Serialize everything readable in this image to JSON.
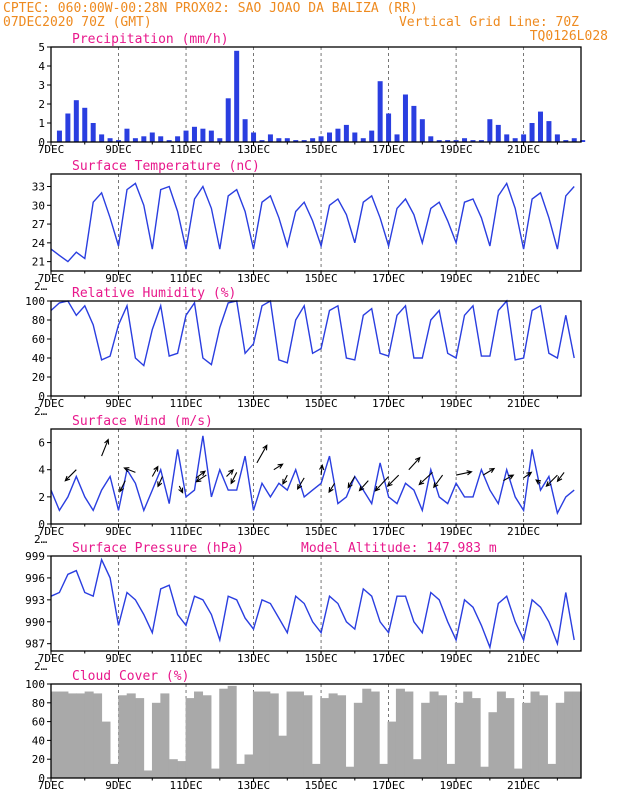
{
  "header": {
    "line1_left": "CPTEC:  060:00W-00:28N  PROX02: SAO JOAO DA BALIZA (RR)",
    "line2_left": "07DEC2020 70Z (GMT)",
    "line2_right": "Vertical Grid Line: 70Z",
    "line3_right": "TQ0126L028"
  },
  "x_ticks": [
    "7DEC",
    "9DEC",
    "11DEC",
    "13DEC",
    "15DEC",
    "17DEC",
    "19DEC",
    "21DEC"
  ],
  "colors": {
    "header": "#ee8a1f",
    "title": "#e8188c",
    "series": "#2a3ee0",
    "cloud": "#a9a9a9",
    "arrow": "#000000"
  },
  "chart_data": [
    {
      "id": "precip",
      "type": "bar",
      "title": "Precipitation (mm/h)",
      "ylim": [
        0,
        5
      ],
      "yticks": [
        0,
        1,
        2,
        3,
        4,
        5
      ],
      "x_unit": "days since 7DEC 00Z, 6-hourly",
      "x": [
        0.25,
        0.5,
        0.75,
        1.0,
        1.25,
        1.5,
        1.75,
        2.0,
        2.25,
        2.5,
        2.75,
        3.0,
        3.25,
        3.5,
        3.75,
        4.0,
        4.25,
        4.5,
        4.75,
        5.0,
        5.25,
        5.5,
        5.75,
        6.0,
        6.25,
        6.5,
        6.75,
        7.0,
        7.25,
        7.5,
        7.75,
        8.0,
        8.25,
        8.5,
        8.75,
        9.0,
        9.25,
        9.5,
        9.75,
        10.0,
        10.25,
        10.5,
        10.75,
        11.0,
        11.25,
        11.5,
        11.75,
        12.0,
        12.25,
        12.5,
        12.75,
        13.0,
        13.25,
        13.5,
        13.75,
        14.0,
        14.25,
        14.5,
        14.75,
        15.0,
        15.25,
        15.5,
        15.75
      ],
      "values": [
        0.6,
        1.5,
        2.2,
        1.8,
        1.0,
        0.4,
        0.2,
        0.1,
        0.7,
        0.2,
        0.3,
        0.5,
        0.3,
        0.1,
        0.3,
        0.6,
        0.8,
        0.7,
        0.6,
        0.2,
        2.3,
        4.8,
        1.2,
        0.5,
        0.1,
        0.4,
        0.2,
        0.2,
        0.1,
        0.1,
        0.2,
        0.3,
        0.5,
        0.7,
        0.9,
        0.5,
        0.2,
        0.6,
        3.2,
        1.5,
        0.4,
        2.5,
        1.9,
        1.2,
        0.3,
        0.1,
        0.1,
        0.1,
        0.2,
        0.1,
        0.1,
        1.2,
        0.9,
        0.4,
        0.2,
        0.4,
        1.0,
        1.6,
        1.1,
        0.4,
        0.1,
        0.2,
        0.1
      ]
    },
    {
      "id": "temp",
      "type": "line",
      "title": "Surface Temperature (nC)",
      "ylim": [
        19.5,
        35
      ],
      "yticks": [
        21,
        24,
        27,
        30,
        33
      ],
      "x_unit": "days since 7DEC 00Z, 6-hourly",
      "values": [
        23.0,
        22.0,
        21.0,
        22.5,
        21.5,
        30.5,
        32.0,
        28.0,
        23.5,
        32.5,
        33.5,
        30.0,
        23.0,
        32.5,
        33.0,
        29.0,
        23.0,
        31.0,
        33.0,
        29.5,
        23.0,
        31.5,
        32.5,
        29.0,
        23.0,
        30.5,
        31.5,
        28.0,
        23.5,
        29.0,
        30.5,
        27.5,
        23.5,
        30.0,
        31.0,
        28.5,
        24.0,
        30.5,
        31.5,
        28.0,
        23.5,
        29.5,
        31.0,
        28.5,
        24.0,
        29.5,
        30.5,
        27.5,
        24.0,
        30.5,
        31.0,
        28.0,
        23.5,
        31.5,
        33.5,
        29.5,
        23.0,
        31.0,
        32.0,
        28.0,
        23.0,
        31.5,
        33.0
      ],
      "annotation": "2…"
    },
    {
      "id": "rh",
      "type": "line",
      "title": "Relative Humidity (%)",
      "ylim": [
        0,
        100
      ],
      "yticks": [
        0,
        20,
        40,
        60,
        80,
        100
      ],
      "x_unit": "days since 7DEC 00Z, 6-hourly",
      "values": [
        90,
        98,
        100,
        85,
        95,
        75,
        38,
        42,
        75,
        95,
        40,
        32,
        70,
        95,
        42,
        45,
        85,
        98,
        40,
        33,
        72,
        98,
        100,
        45,
        55,
        95,
        100,
        38,
        35,
        80,
        95,
        45,
        50,
        90,
        95,
        40,
        38,
        85,
        92,
        45,
        42,
        85,
        95,
        40,
        40,
        80,
        90,
        45,
        40,
        85,
        95,
        42,
        42,
        90,
        100,
        38,
        40,
        90,
        95,
        45,
        40,
        85,
        40
      ],
      "annotation": "2…"
    },
    {
      "id": "wind",
      "type": "line",
      "title": "Surface Wind (m/s)",
      "ylim": [
        0,
        7
      ],
      "yticks": [
        0,
        2,
        4,
        6
      ],
      "x_unit": "days since 7DEC 00Z, 6-hourly",
      "values": [
        2.5,
        1.0,
        2.0,
        3.5,
        2.0,
        1.0,
        2.5,
        3.5,
        1.0,
        4.0,
        3.0,
        1.0,
        2.5,
        4.0,
        1.5,
        5.5,
        2.0,
        2.5,
        6.5,
        2.0,
        4.0,
        2.5,
        2.5,
        5.0,
        1.0,
        3.0,
        2.0,
        3.0,
        2.5,
        4.0,
        2.0,
        2.5,
        3.0,
        5.0,
        1.5,
        2.0,
        3.5,
        2.5,
        1.5,
        4.5,
        2.0,
        1.5,
        3.0,
        2.5,
        1.0,
        4.0,
        2.0,
        1.5,
        3.0,
        2.0,
        2.0,
        4.0,
        2.5,
        1.5,
        4.0,
        2.0,
        1.0,
        5.5,
        2.5,
        3.5,
        0.8,
        2.0,
        2.5
      ],
      "vectors": [
        {
          "day": 0.75,
          "speed": 4.0,
          "u": -1.0,
          "v": -1.0
        },
        {
          "day": 1.5,
          "speed": 5.0,
          "u": 0.6,
          "v": 1.5
        },
        {
          "day": 2.2,
          "speed": 3.2,
          "u": -0.5,
          "v": -1.0
        },
        {
          "day": 2.5,
          "speed": 3.8,
          "u": -1.0,
          "v": 0.4
        },
        {
          "day": 3.0,
          "speed": 3.5,
          "u": 0.5,
          "v": 0.9
        },
        {
          "day": 3.3,
          "speed": 3.5,
          "u": -0.4,
          "v": -0.9
        },
        {
          "day": 3.8,
          "speed": 2.8,
          "u": 0.3,
          "v": -0.6
        },
        {
          "day": 4.3,
          "speed": 3.4,
          "u": 0.8,
          "v": 0.6
        },
        {
          "day": 4.6,
          "speed": 3.6,
          "u": -0.9,
          "v": -0.6
        },
        {
          "day": 5.2,
          "speed": 3.5,
          "u": 0.6,
          "v": 0.6
        },
        {
          "day": 5.5,
          "speed": 3.8,
          "u": -0.5,
          "v": -1.0
        },
        {
          "day": 6.1,
          "speed": 4.5,
          "u": 0.9,
          "v": 1.6
        },
        {
          "day": 6.6,
          "speed": 4.0,
          "u": 0.8,
          "v": 0.5
        },
        {
          "day": 7.0,
          "speed": 3.6,
          "u": -0.4,
          "v": -0.8
        },
        {
          "day": 7.5,
          "speed": 3.4,
          "u": -0.6,
          "v": -1.0
        },
        {
          "day": 8.0,
          "speed": 3.6,
          "u": 0.1,
          "v": 0.9
        },
        {
          "day": 8.4,
          "speed": 3.0,
          "u": -0.5,
          "v": -0.8
        },
        {
          "day": 9.0,
          "speed": 3.5,
          "u": -0.6,
          "v": -1.0
        },
        {
          "day": 9.4,
          "speed": 3.2,
          "u": -0.8,
          "v": -0.9
        },
        {
          "day": 10.0,
          "speed": 3.5,
          "u": -1.2,
          "v": -1.3
        },
        {
          "day": 10.3,
          "speed": 3.6,
          "u": -1.0,
          "v": -1.0
        },
        {
          "day": 10.6,
          "speed": 4.0,
          "u": 1.0,
          "v": 1.1
        },
        {
          "day": 11.3,
          "speed": 3.8,
          "u": -1.2,
          "v": -1.1
        },
        {
          "day": 11.6,
          "speed": 3.6,
          "u": -0.8,
          "v": -1.1
        },
        {
          "day": 12.0,
          "speed": 3.6,
          "u": 1.4,
          "v": 0.3
        },
        {
          "day": 12.8,
          "speed": 3.6,
          "u": 1.0,
          "v": 0.6
        },
        {
          "day": 13.4,
          "speed": 3.2,
          "u": 0.9,
          "v": 0.5
        },
        {
          "day": 14.0,
          "speed": 3.4,
          "u": 0.7,
          "v": 0.5
        },
        {
          "day": 14.5,
          "speed": 3.0,
          "u": -0.4,
          "v": 0.3
        },
        {
          "day": 15.0,
          "speed": 3.6,
          "u": -1.0,
          "v": -1.0
        },
        {
          "day": 15.2,
          "speed": 3.8,
          "u": -0.6,
          "v": -0.8
        }
      ],
      "annotation": "2…"
    },
    {
      "id": "pres",
      "type": "line",
      "title": "Surface Pressure (hPa)",
      "subtitle": "Model Altitude: 147.983 m",
      "ylim": [
        986,
        999
      ],
      "yticks": [
        987,
        990,
        993,
        996,
        999
      ],
      "x_unit": "days since 7DEC 00Z, 6-hourly",
      "values": [
        993.5,
        994.0,
        996.5,
        997.0,
        994.0,
        993.5,
        998.5,
        996.0,
        989.5,
        994.0,
        993.0,
        991.0,
        988.5,
        994.5,
        995.0,
        991.0,
        989.5,
        993.5,
        993.0,
        991.0,
        987.5,
        993.5,
        993.0,
        990.5,
        989.0,
        993.0,
        992.5,
        990.5,
        988.5,
        993.5,
        992.5,
        990.0,
        988.5,
        993.5,
        992.5,
        990.0,
        989.0,
        994.5,
        993.5,
        990.0,
        988.5,
        993.5,
        993.5,
        990.0,
        988.5,
        994.0,
        993.0,
        990.0,
        987.5,
        993.0,
        992.0,
        989.5,
        986.5,
        992.5,
        993.5,
        990.0,
        987.5,
        993.0,
        992.0,
        990.0,
        987.0,
        994.0,
        987.5
      ],
      "annotation": "2…"
    },
    {
      "id": "cloud",
      "type": "area",
      "title": "Cloud Cover (%)",
      "ylim": [
        0,
        100
      ],
      "yticks": [
        0,
        20,
        40,
        60,
        80,
        100
      ],
      "x_unit": "days since 7DEC 00Z, 6-hourly",
      "values": [
        92,
        92,
        90,
        90,
        92,
        90,
        60,
        15,
        88,
        90,
        85,
        8,
        80,
        90,
        20,
        18,
        85,
        92,
        88,
        10,
        95,
        98,
        15,
        25,
        92,
        92,
        90,
        45,
        92,
        92,
        88,
        15,
        85,
        90,
        88,
        12,
        80,
        95,
        92,
        15,
        60,
        95,
        92,
        20,
        80,
        92,
        88,
        15,
        80,
        92,
        85,
        12,
        70,
        92,
        85,
        10,
        80,
        92,
        88,
        15,
        80,
        92,
        92
      ]
    }
  ]
}
